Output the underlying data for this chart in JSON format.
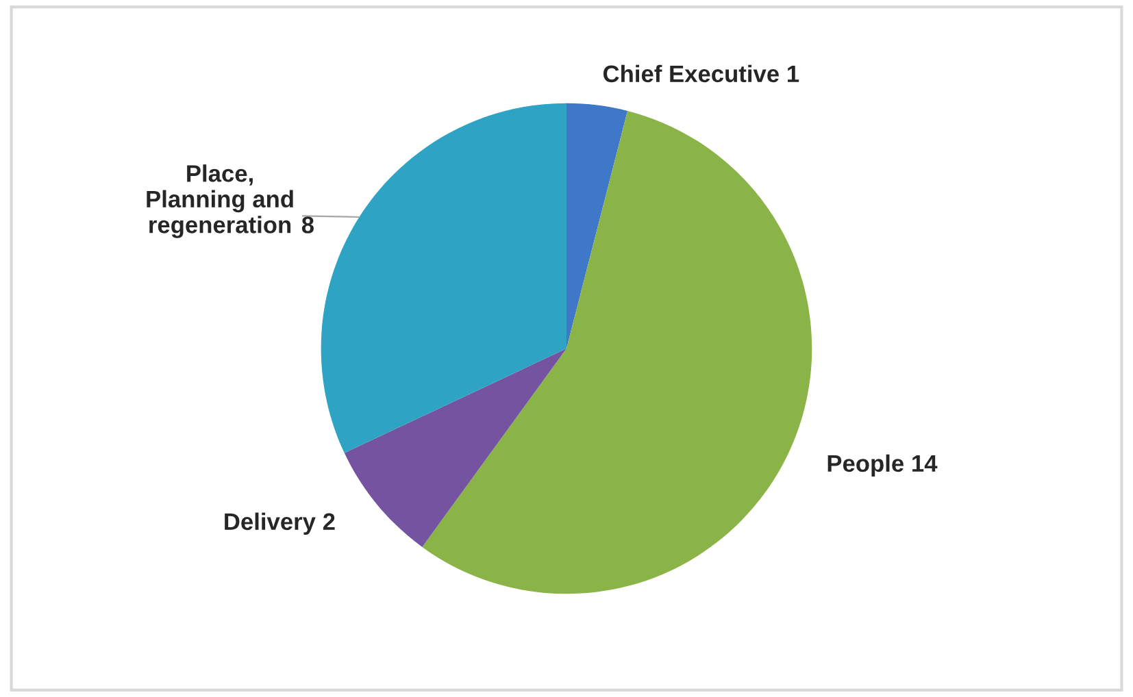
{
  "chart_data": {
    "type": "pie",
    "categories": [
      "Chief Executive",
      "People",
      "Delivery",
      "Place,\nPlanning and\nregeneration"
    ],
    "values": [
      1,
      14,
      2,
      8
    ],
    "colors": [
      "#3f78c8",
      "#8ab447",
      "#7453a0",
      "#2fa3c4"
    ],
    "data_labels": true
  }
}
